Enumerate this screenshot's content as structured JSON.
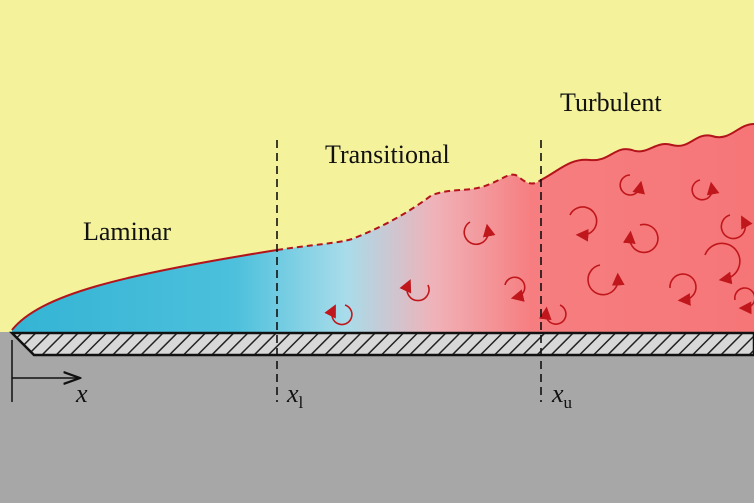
{
  "regions": [
    {
      "label": "Laminar"
    },
    {
      "label": "Transitional"
    },
    {
      "label": "Turbulent"
    }
  ],
  "axis": {
    "label": "x"
  },
  "markers": [
    {
      "symbol": "x",
      "subscript": "l"
    },
    {
      "symbol": "x",
      "subscript": "u"
    }
  ]
}
